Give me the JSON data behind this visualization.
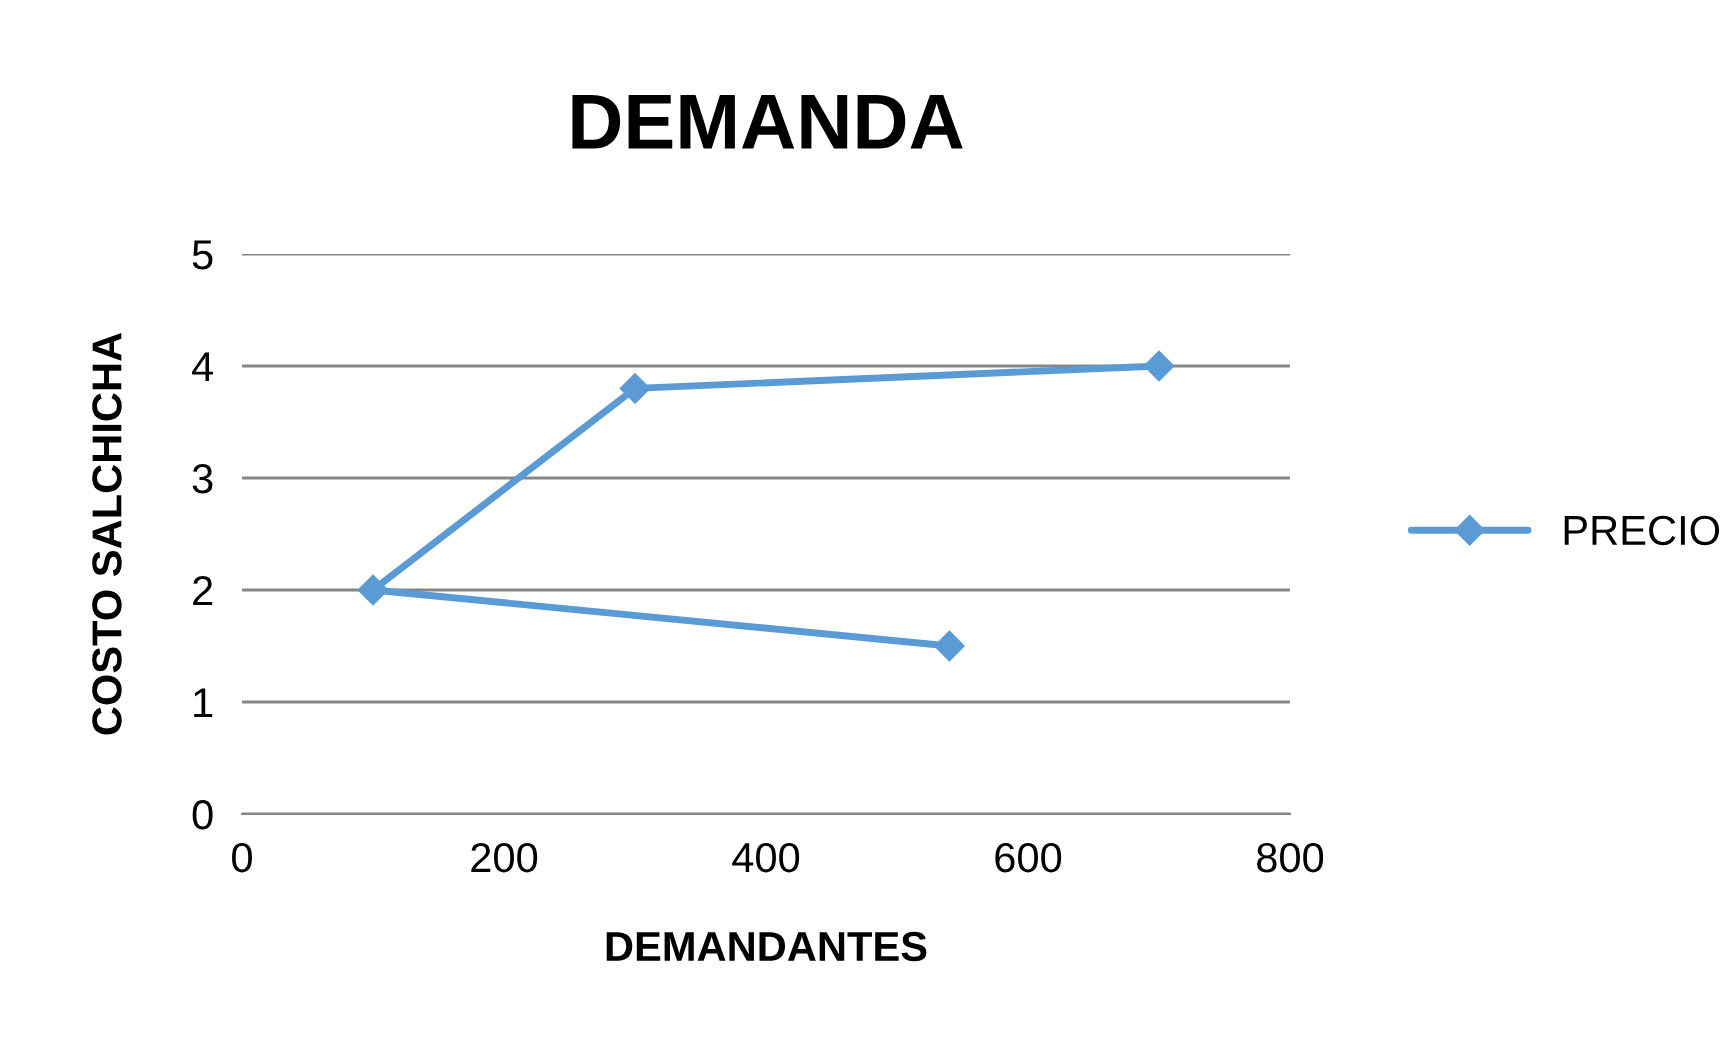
{
  "chart_data": {
    "type": "line",
    "title": "DEMANDA",
    "xlabel": "DEMANDANTES",
    "ylabel": "COSTO SALCHICHA",
    "series": [
      {
        "name": "PRECIO",
        "color": "#5b9bd5",
        "x": [
          540,
          100,
          300,
          700
        ],
        "values": [
          1.5,
          2,
          3.8,
          4
        ]
      }
    ],
    "xlim": [
      0,
      800
    ],
    "xticks": [
      0,
      200,
      400,
      600,
      800
    ],
    "ylim": [
      0,
      5
    ],
    "yticks": [
      0,
      1,
      2,
      3,
      4,
      5
    ],
    "grid": "y",
    "legend": "right",
    "marker": "diamond",
    "line_style": "solid"
  }
}
